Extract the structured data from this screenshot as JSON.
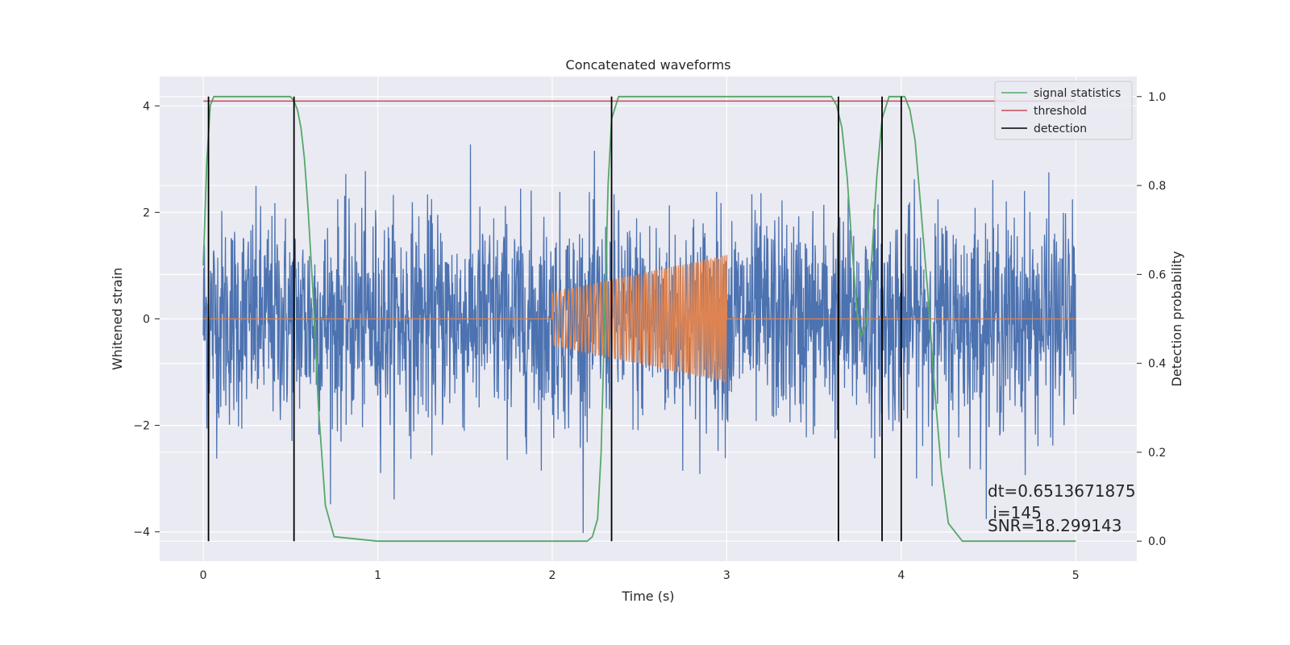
{
  "chart_data": {
    "type": "line",
    "title": "Concatenated waveforms",
    "xlabel": "Time (s)",
    "ylabel": "Whitened strain",
    "y2label": "Detection probability",
    "xlim": [
      -0.25,
      5.35
    ],
    "ylim": [
      -4.55,
      4.55
    ],
    "y2lim": [
      -0.045,
      1.045
    ],
    "xticks": [
      0,
      1,
      2,
      3,
      4,
      5
    ],
    "xtick_labels": [
      "0",
      "1",
      "2",
      "3",
      "4",
      "5"
    ],
    "yticks": [
      -4,
      -2,
      0,
      2,
      4
    ],
    "ytick_labels": [
      "−4",
      "−2",
      "0",
      "2",
      "4"
    ],
    "y2ticks": [
      0.0,
      0.2,
      0.4,
      0.6,
      0.8,
      1.0
    ],
    "y2tick_labels": [
      "0.0",
      "0.2",
      "0.4",
      "0.6",
      "0.8",
      "1.0"
    ],
    "grid": true,
    "legend_position": "top-right",
    "legend": [
      {
        "name": "signal statistics",
        "color": "#55a868"
      },
      {
        "name": "threshold",
        "color": "#c44e52"
      },
      {
        "name": "detection",
        "color": "#000000"
      }
    ],
    "noise_series": {
      "axis": "left",
      "color": "#4c72b0",
      "x_range": [
        0,
        5
      ],
      "typical_amplitude": 2.2,
      "max_abs": 4.1
    },
    "injection_series": {
      "axis": "left",
      "color": "#dd8452",
      "x_range": [
        0,
        5
      ],
      "chirp_start": 2.0,
      "chirp_end": 3.0,
      "amplitude_start": 0.5,
      "amplitude_end": 1.2
    },
    "signal_statistics": {
      "axis": "right",
      "color": "#55a868",
      "x": [
        0.0,
        0.02,
        0.04,
        0.06,
        0.5,
        0.52,
        0.54,
        0.56,
        0.58,
        0.6,
        0.63,
        0.66,
        0.7,
        0.75,
        1.0,
        1.5,
        2.0,
        2.2,
        2.23,
        2.26,
        2.28,
        2.3,
        2.32,
        2.34,
        2.38,
        3.6,
        3.63,
        3.66,
        3.69,
        3.72,
        3.75,
        3.77,
        3.8,
        3.83,
        3.86,
        3.89,
        3.93,
        3.98,
        4.02,
        4.05,
        4.08,
        4.11,
        4.15,
        4.19,
        4.23,
        4.27,
        4.35,
        5.0
      ],
      "y": [
        0.62,
        0.85,
        0.98,
        1.0,
        1.0,
        0.99,
        0.97,
        0.93,
        0.86,
        0.75,
        0.55,
        0.3,
        0.08,
        0.01,
        0.0,
        0.0,
        0.0,
        0.0,
        0.01,
        0.05,
        0.2,
        0.5,
        0.8,
        0.95,
        1.0,
        1.0,
        0.98,
        0.93,
        0.82,
        0.65,
        0.5,
        0.46,
        0.49,
        0.63,
        0.82,
        0.95,
        1.0,
        1.0,
        1.0,
        0.97,
        0.9,
        0.76,
        0.57,
        0.35,
        0.16,
        0.04,
        0.0,
        0.0
      ]
    },
    "threshold": {
      "axis": "right",
      "color": "#c44e52",
      "value": 0.99,
      "x_range": [
        0,
        5
      ]
    },
    "detections": {
      "axis": "right",
      "color": "#000000",
      "x": [
        0.03,
        0.52,
        2.34,
        3.64,
        3.89,
        4.0
      ],
      "y_range": [
        0.0,
        1.0
      ]
    },
    "annotations": {
      "dt": "dt=0.6513671875",
      "i": " i=145",
      "snr": "SNR=18.299143"
    }
  }
}
